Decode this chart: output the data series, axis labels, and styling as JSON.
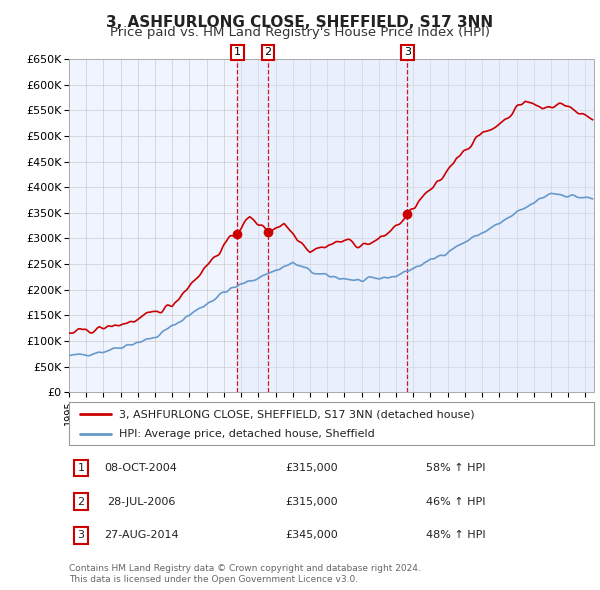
{
  "title": "3, ASHFURLONG CLOSE, SHEFFIELD, S17 3NN",
  "subtitle": "Price paid vs. HM Land Registry's House Price Index (HPI)",
  "title_fontsize": 11,
  "subtitle_fontsize": 9.5,
  "ylim": [
    0,
    650000
  ],
  "yticks": [
    0,
    50000,
    100000,
    150000,
    200000,
    250000,
    300000,
    350000,
    400000,
    450000,
    500000,
    550000,
    600000,
    650000
  ],
  "xlim_start": 1995.0,
  "xlim_end": 2025.5,
  "bg_color": "#ffffff",
  "chart_bg": "#f0f4ff",
  "grid_color": "#cccccc",
  "transactions": [
    {
      "num": 1,
      "date": "08-OCT-2004",
      "price": 315000,
      "year": 2004.78,
      "label": "1",
      "pct": "58%",
      "dir": "↑"
    },
    {
      "num": 2,
      "date": "28-JUL-2006",
      "price": 315000,
      "year": 2006.57,
      "label": "2",
      "pct": "46%",
      "dir": "↑"
    },
    {
      "num": 3,
      "date": "27-AUG-2014",
      "price": 345000,
      "year": 2014.66,
      "label": "3",
      "pct": "48%",
      "dir": "↑"
    }
  ],
  "legend_line1": "3, ASHFURLONG CLOSE, SHEFFIELD, S17 3NN (detached house)",
  "legend_line2": "HPI: Average price, detached house, Sheffield",
  "footer1": "Contains HM Land Registry data © Crown copyright and database right 2024.",
  "footer2": "This data is licensed under the Open Government Licence v3.0.",
  "red_color": "#cc0000",
  "blue_color": "#6699cc",
  "shade_color": "#dce8f8",
  "marker_box_color": "#cc0000"
}
